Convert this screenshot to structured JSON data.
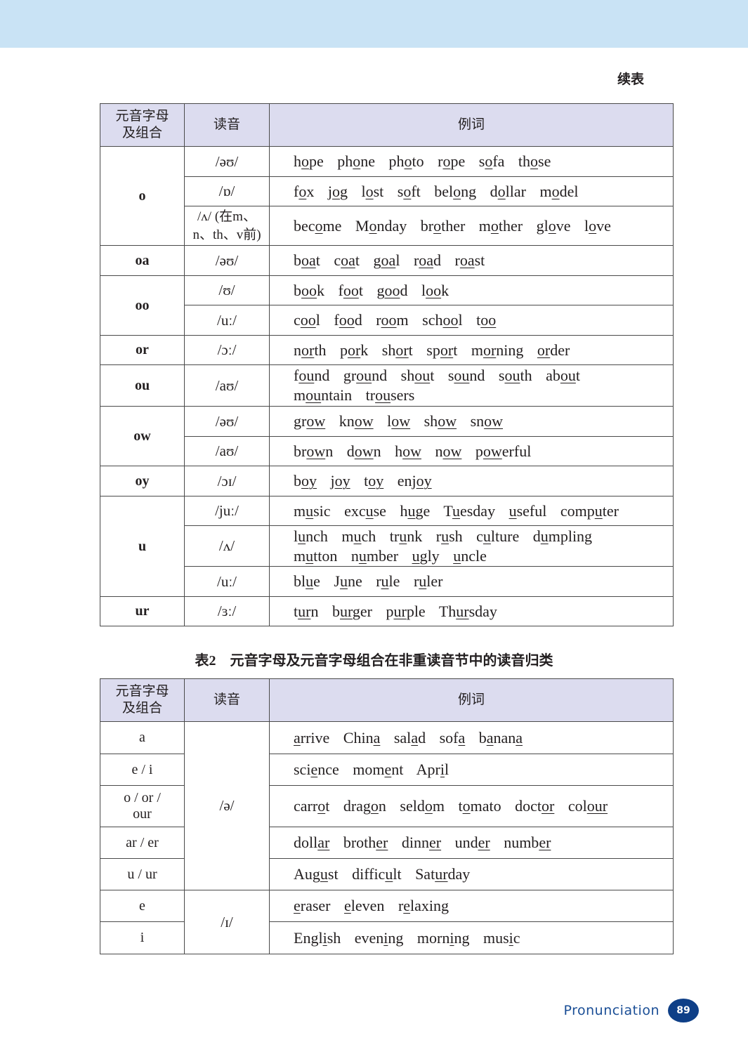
{
  "continued_label": "续表",
  "table1": {
    "headers": [
      "元音字母\n及组合",
      "读音",
      "例词"
    ],
    "groups": [
      {
        "letter": "o",
        "rows": [
          {
            "phon": "/əʊ/",
            "words": [
              [
                "h",
                "o",
                "pe"
              ],
              [
                "ph",
                "o",
                "ne"
              ],
              [
                "ph",
                "o",
                "to"
              ],
              [
                "r",
                "o",
                "pe"
              ],
              [
                "s",
                "o",
                "fa"
              ],
              [
                "th",
                "o",
                "se"
              ]
            ]
          },
          {
            "phon": "/ɒ/",
            "words": [
              [
                "f",
                "o",
                "x"
              ],
              [
                "j",
                "o",
                "g"
              ],
              [
                "l",
                "o",
                "st"
              ],
              [
                "s",
                "o",
                "ft"
              ],
              [
                "bel",
                "o",
                "ng"
              ],
              [
                "d",
                "o",
                "llar"
              ],
              [
                "m",
                "o",
                "del"
              ]
            ]
          },
          {
            "phon": "/ʌ/ (在m、n、th、v前)",
            "words": [
              [
                "bec",
                "o",
                "me"
              ],
              [
                "M",
                "o",
                "nday"
              ],
              [
                "br",
                "o",
                "ther"
              ],
              [
                "m",
                "o",
                "ther"
              ],
              [
                "gl",
                "o",
                "ve"
              ],
              [
                "l",
                "o",
                "ve"
              ]
            ]
          }
        ]
      },
      {
        "letter": "oa",
        "rows": [
          {
            "phon": "/əʊ/",
            "words": [
              [
                "b",
                "oa",
                "t"
              ],
              [
                "c",
                "oa",
                "t"
              ],
              [
                "g",
                "oa",
                "l"
              ],
              [
                "r",
                "oa",
                "d"
              ],
              [
                "r",
                "oa",
                "st"
              ]
            ]
          }
        ]
      },
      {
        "letter": "oo",
        "rows": [
          {
            "phon": "/ʊ/",
            "words": [
              [
                "b",
                "oo",
                "k"
              ],
              [
                "f",
                "oo",
                "t"
              ],
              [
                "g",
                "oo",
                "d"
              ],
              [
                "l",
                "oo",
                "k"
              ]
            ]
          },
          {
            "phon": "/uː/",
            "words": [
              [
                "c",
                "oo",
                "l"
              ],
              [
                "f",
                "oo",
                "d"
              ],
              [
                "r",
                "oo",
                "m"
              ],
              [
                "sch",
                "oo",
                "l"
              ],
              [
                "t",
                "oo"
              ]
            ]
          }
        ]
      },
      {
        "letter": "or",
        "rows": [
          {
            "phon": "/ɔː/",
            "words": [
              [
                "n",
                "or",
                "th"
              ],
              [
                "p",
                "or",
                "k"
              ],
              [
                "sh",
                "or",
                "t"
              ],
              [
                "sp",
                "or",
                "t"
              ],
              [
                "m",
                "or",
                "ning"
              ],
              [
                "",
                "or",
                "der"
              ]
            ]
          }
        ]
      },
      {
        "letter": "ou",
        "rows": [
          {
            "phon": "/aʊ/",
            "words": [
              [
                "f",
                "ou",
                "nd"
              ],
              [
                "gr",
                "ou",
                "nd"
              ],
              [
                "sh",
                "ou",
                "t"
              ],
              [
                "s",
                "ou",
                "nd"
              ],
              [
                "s",
                "ou",
                "th"
              ],
              [
                "ab",
                "ou",
                "t"
              ],
              [
                "m",
                "ou",
                "ntain"
              ],
              [
                "tr",
                "ou",
                "sers"
              ]
            ]
          }
        ]
      },
      {
        "letter": "ow",
        "rows": [
          {
            "phon": "/əʊ/",
            "words": [
              [
                "gr",
                "ow"
              ],
              [
                "kn",
                "ow"
              ],
              [
                "l",
                "ow"
              ],
              [
                "sh",
                "ow"
              ],
              [
                "sn",
                "ow"
              ]
            ]
          },
          {
            "phon": "/aʊ/",
            "words": [
              [
                "br",
                "ow",
                "n"
              ],
              [
                "d",
                "ow",
                "n"
              ],
              [
                "h",
                "ow"
              ],
              [
                "n",
                "ow"
              ],
              [
                "p",
                "ow",
                "erful"
              ]
            ]
          }
        ]
      },
      {
        "letter": "oy",
        "rows": [
          {
            "phon": "/ɔɪ/",
            "words": [
              [
                "b",
                "oy"
              ],
              [
                "j",
                "oy"
              ],
              [
                "t",
                "oy"
              ],
              [
                "enj",
                "oy"
              ]
            ]
          }
        ]
      },
      {
        "letter": "u",
        "rows": [
          {
            "phon": "/juː/",
            "words": [
              [
                "m",
                "u",
                "sic"
              ],
              [
                "exc",
                "u",
                "se"
              ],
              [
                "h",
                "u",
                "ge"
              ],
              [
                "T",
                "u",
                "esday"
              ],
              [
                "",
                "u",
                "seful"
              ],
              [
                "comp",
                "u",
                "ter"
              ]
            ]
          },
          {
            "phon": "/ʌ/",
            "words": [
              [
                "l",
                "u",
                "nch"
              ],
              [
                "m",
                "u",
                "ch"
              ],
              [
                "tr",
                "u",
                "nk"
              ],
              [
                "r",
                "u",
                "sh"
              ],
              [
                "c",
                "u",
                "lture"
              ],
              [
                "d",
                "u",
                "mpling"
              ],
              [
                "m",
                "u",
                "tton"
              ],
              [
                "n",
                "u",
                "mber"
              ],
              [
                "",
                "u",
                "gly"
              ],
              [
                "",
                "u",
                "ncle"
              ]
            ]
          },
          {
            "phon": "/uː/",
            "words": [
              [
                "bl",
                "u",
                "e"
              ],
              [
                "J",
                "u",
                "ne"
              ],
              [
                "r",
                "u",
                "le"
              ],
              [
                "r",
                "u",
                "ler"
              ]
            ]
          }
        ]
      },
      {
        "letter": "ur",
        "rows": [
          {
            "phon": "/ɜː/",
            "words": [
              [
                "t",
                "ur",
                "n"
              ],
              [
                "b",
                "ur",
                "ger"
              ],
              [
                "p",
                "ur",
                "ple"
              ],
              [
                "Th",
                "ur",
                "sday"
              ]
            ]
          }
        ]
      }
    ]
  },
  "table2": {
    "caption_number": "表2",
    "caption_title": "元音字母及元音字母组合在非重读音节中的读音归类",
    "headers": [
      "元音字母\n及组合",
      "读音",
      "例词"
    ],
    "groups": [
      {
        "phon": "/ə/",
        "rows": [
          {
            "letters": "a",
            "words": [
              [
                "",
                "a",
                "rrive"
              ],
              [
                "Chin",
                "a"
              ],
              [
                "sal",
                "a",
                "d"
              ],
              [
                "sof",
                "a"
              ],
              [
                "b",
                "a",
                "nan",
                "a"
              ]
            ]
          },
          {
            "letters": "e / i",
            "words": [
              [
                "sci",
                "e",
                "nce"
              ],
              [
                "mom",
                "e",
                "nt"
              ],
              [
                "Apr",
                "i",
                "l"
              ]
            ]
          },
          {
            "letters": "o / or / our",
            "words": [
              [
                "carr",
                "o",
                "t"
              ],
              [
                "drag",
                "o",
                "n"
              ],
              [
                "seld",
                "o",
                "m"
              ],
              [
                "t",
                "o",
                "mato"
              ],
              [
                "doct",
                "or"
              ],
              [
                "col",
                "our"
              ]
            ]
          },
          {
            "letters": "ar / er",
            "words": [
              [
                "doll",
                "ar"
              ],
              [
                "broth",
                "er"
              ],
              [
                "dinn",
                "er"
              ],
              [
                "und",
                "er"
              ],
              [
                "numb",
                "er"
              ]
            ]
          },
          {
            "letters": "u / ur",
            "words": [
              [
                "Aug",
                "u",
                "st"
              ],
              [
                "diffic",
                "u",
                "lt"
              ],
              [
                "Sat",
                "ur",
                "day"
              ]
            ]
          }
        ]
      },
      {
        "phon": "/ɪ/",
        "rows": [
          {
            "letters": "e",
            "words": [
              [
                "",
                "e",
                "raser"
              ],
              [
                "",
                "e",
                "leven"
              ],
              [
                "r",
                "e",
                "laxing"
              ]
            ]
          },
          {
            "letters": "i",
            "words": [
              [
                "Engl",
                "i",
                "sh"
              ],
              [
                "even",
                "i",
                "ng"
              ],
              [
                "morn",
                "i",
                "ng"
              ],
              [
                "mus",
                "i",
                "c"
              ]
            ]
          }
        ]
      }
    ]
  },
  "footer": {
    "section": "Pronunciation",
    "page_number": "89"
  },
  "colors": {
    "top_band": "#c9e3f5",
    "header_bg": "#dcdcef",
    "footer_text": "#1a4e96",
    "page_badge": "#0e3f87"
  }
}
